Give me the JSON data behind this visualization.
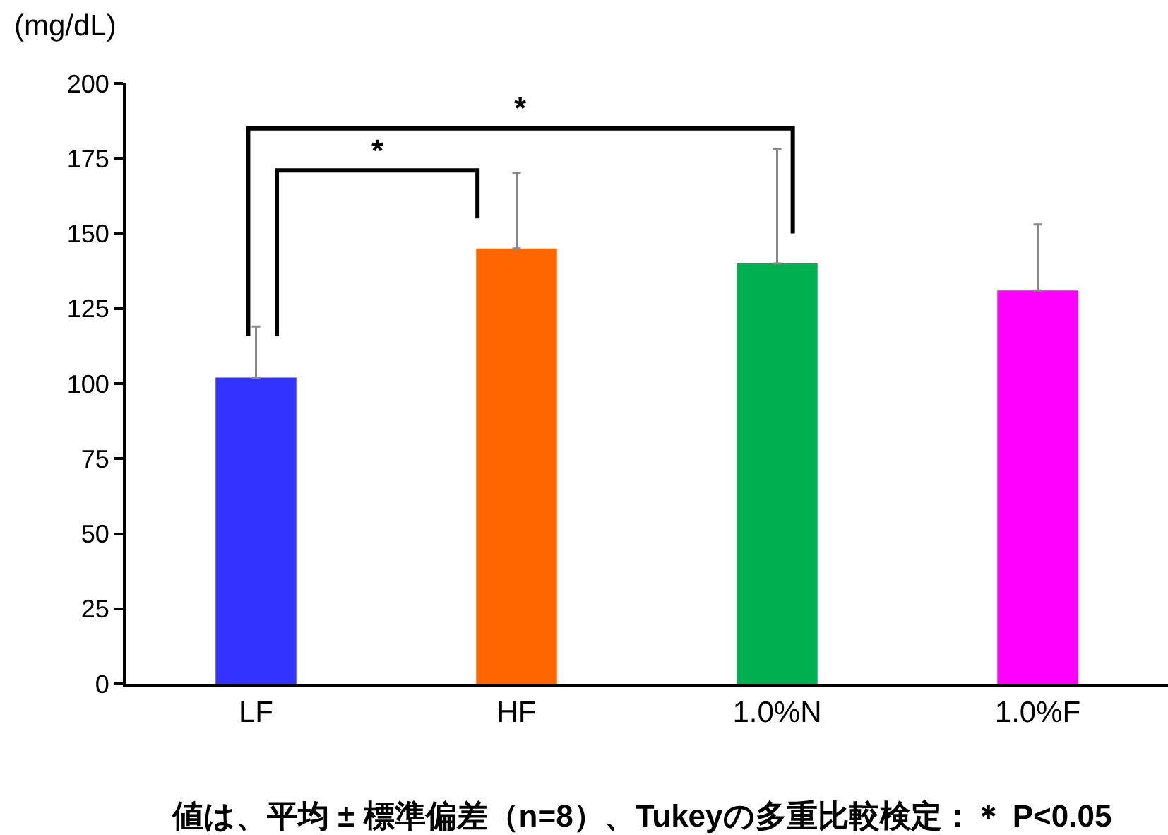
{
  "chart_data": {
    "type": "bar",
    "ylabel": "(mg/dL)",
    "categories": [
      "LF",
      "HF",
      "1.0%N",
      "1.0%F"
    ],
    "values": [
      102,
      145,
      140,
      131
    ],
    "colors": [
      "#3333ff",
      "#ff6600",
      "#00b050",
      "#ff00ff"
    ],
    "errors": [
      [
        102,
        119
      ],
      [
        145,
        170
      ],
      [
        140,
        178
      ],
      [
        131,
        153
      ]
    ],
    "ylim": [
      0,
      200
    ],
    "yticks": [
      0,
      25,
      50,
      75,
      100,
      125,
      150,
      175,
      200
    ],
    "annotations": [
      "*",
      "*",
      "値は、平均 ± 標準偏差（n=8）、Tukeyの多重比較検定：＊ P<0.05"
    ]
  }
}
